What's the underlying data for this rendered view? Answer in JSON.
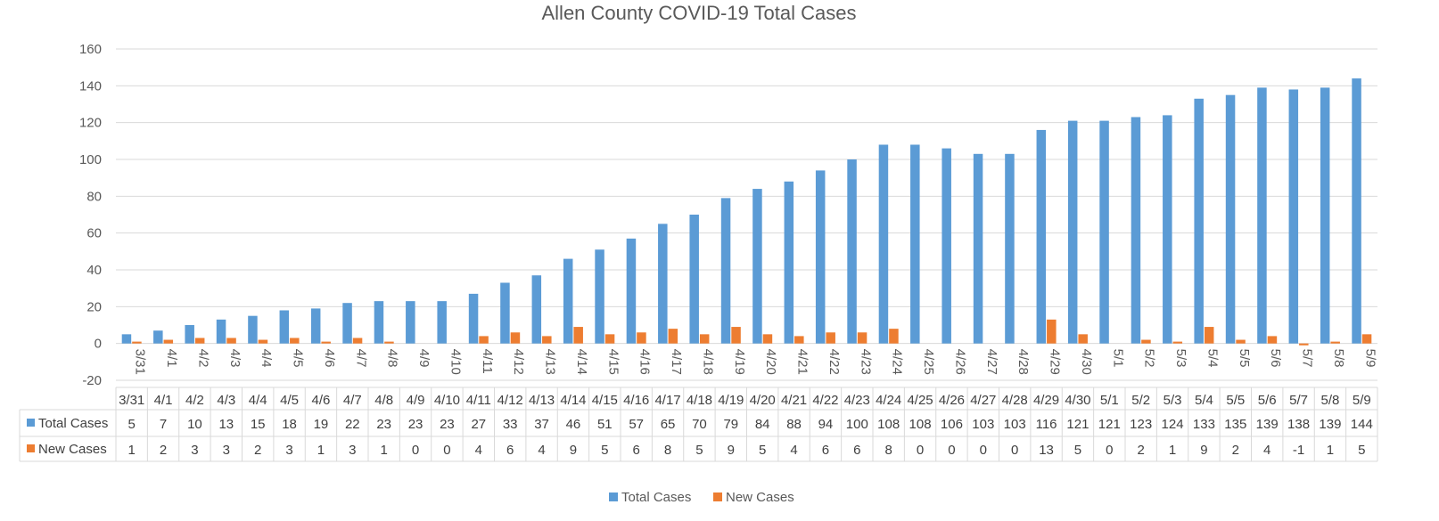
{
  "chart_data": {
    "type": "bar",
    "title": "Allen County COVID-19 Total Cases",
    "categories": [
      "3/31",
      "4/1",
      "4/2",
      "4/3",
      "4/4",
      "4/5",
      "4/6",
      "4/7",
      "4/8",
      "4/9",
      "4/10",
      "4/11",
      "4/12",
      "4/13",
      "4/14",
      "4/15",
      "4/16",
      "4/17",
      "4/18",
      "4/19",
      "4/20",
      "4/21",
      "4/22",
      "4/23",
      "4/24",
      "4/25",
      "4/26",
      "4/27",
      "4/28",
      "4/29",
      "4/30",
      "5/1",
      "5/2",
      "5/3",
      "5/4",
      "5/5",
      "5/6",
      "5/7",
      "5/8",
      "5/9"
    ],
    "series": [
      {
        "name": "Total Cases",
        "color": "#5B9BD5",
        "values": [
          5,
          7,
          10,
          13,
          15,
          18,
          19,
          22,
          23,
          23,
          23,
          27,
          33,
          37,
          46,
          51,
          57,
          65,
          70,
          79,
          84,
          88,
          94,
          100,
          108,
          108,
          106,
          103,
          103,
          116,
          121,
          121,
          123,
          124,
          133,
          135,
          139,
          138,
          139,
          144
        ]
      },
      {
        "name": "New Cases",
        "color": "#ED7D31",
        "values": [
          1,
          2,
          3,
          3,
          2,
          3,
          1,
          3,
          1,
          0,
          0,
          4,
          6,
          4,
          9,
          5,
          6,
          8,
          5,
          9,
          5,
          4,
          6,
          6,
          8,
          0,
          0,
          0,
          0,
          13,
          5,
          0,
          2,
          1,
          9,
          2,
          4,
          -1,
          1,
          5
        ]
      }
    ],
    "ylim": [
      -20,
      160
    ],
    "yticks": [
      -20,
      0,
      20,
      40,
      60,
      80,
      100,
      120,
      140,
      160
    ],
    "grid": true,
    "data_table": true,
    "legend_position": "bottom"
  }
}
